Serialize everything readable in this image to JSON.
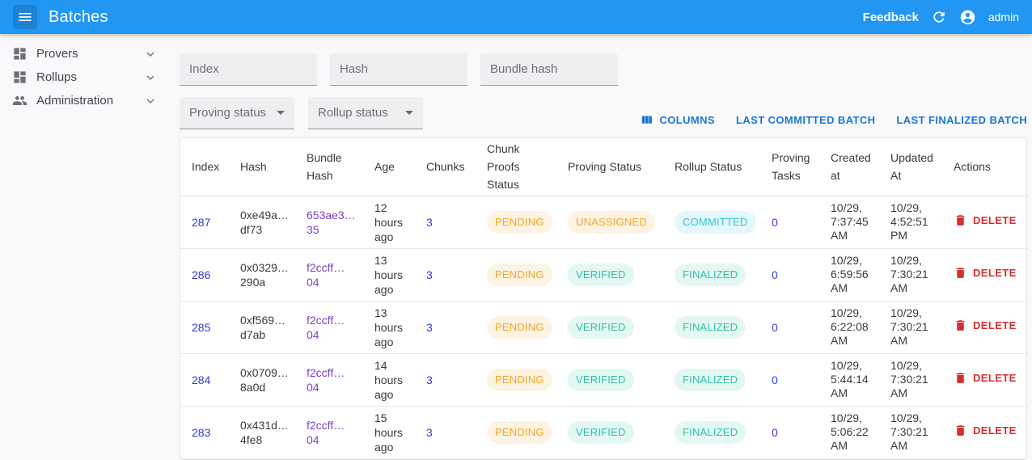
{
  "appbar": {
    "title": "Batches",
    "feedback_label": "Feedback",
    "username": "admin"
  },
  "sidebar": {
    "items": [
      {
        "label": "Provers"
      },
      {
        "label": "Rollups"
      },
      {
        "label": "Administration"
      }
    ]
  },
  "filters": {
    "index_placeholder": "Index",
    "hash_placeholder": "Hash",
    "bundle_hash_placeholder": "Bundle hash",
    "proving_status_label": "Proving status",
    "rollup_status_label": "Rollup status"
  },
  "toolbar": {
    "columns_label": "COLUMNS",
    "last_committed_label": "LAST COMMITTED BATCH",
    "last_finalized_label": "LAST FINALIZED BATCH"
  },
  "table": {
    "columns": [
      "Index",
      "Hash",
      "Bundle Hash",
      "Age",
      "Chunks",
      "Chunk Proofs Status",
      "Proving Status",
      "Rollup Status",
      "Proving Tasks",
      "Created at",
      "Updated At",
      "Actions"
    ],
    "delete_label": "DELETE",
    "rows": [
      {
        "index": "287",
        "hash": "0xe49a… df73",
        "bundle_hash": "653ae3… 35",
        "age": "12 hours ago",
        "chunks": "3",
        "chunk_proofs_status": "PENDING",
        "proving_status": "UNASSIGNED",
        "rollup_status": "COMMITTED",
        "proving_tasks": "0",
        "created_at": "10/29, 7:37:45 AM",
        "updated_at": "10/29, 4:52:51 PM"
      },
      {
        "index": "286",
        "hash": "0x0329… 290a",
        "bundle_hash": "f2ccff… 04",
        "age": "13 hours ago",
        "chunks": "3",
        "chunk_proofs_status": "PENDING",
        "proving_status": "VERIFIED",
        "rollup_status": "FINALIZED",
        "proving_tasks": "0",
        "created_at": "10/29, 6:59:56 AM",
        "updated_at": "10/29, 7:30:21 AM"
      },
      {
        "index": "285",
        "hash": "0xf569… d7ab",
        "bundle_hash": "f2ccff… 04",
        "age": "13 hours ago",
        "chunks": "3",
        "chunk_proofs_status": "PENDING",
        "proving_status": "VERIFIED",
        "rollup_status": "FINALIZED",
        "proving_tasks": "0",
        "created_at": "10/29, 6:22:08 AM",
        "updated_at": "10/29, 7:30:21 AM"
      },
      {
        "index": "284",
        "hash": "0x0709… 8a0d",
        "bundle_hash": "f2ccff… 04",
        "age": "14 hours ago",
        "chunks": "3",
        "chunk_proofs_status": "PENDING",
        "proving_status": "VERIFIED",
        "rollup_status": "FINALIZED",
        "proving_tasks": "0",
        "created_at": "10/29, 5:44:14 AM",
        "updated_at": "10/29, 7:30:21 AM"
      },
      {
        "index": "283",
        "hash": "0x431d… 4fe8",
        "bundle_hash": "f2ccff… 04",
        "age": "15 hours ago",
        "chunks": "3",
        "chunk_proofs_status": "PENDING",
        "proving_status": "VERIFIED",
        "rollup_status": "FINALIZED",
        "proving_tasks": "0",
        "created_at": "10/29, 5:06:22 AM",
        "updated_at": "10/29, 7:30:21 AM"
      }
    ]
  },
  "colors": {
    "appbar_bg": "#2196f3",
    "toolbar_button": "#1976d2",
    "link_blue": "#3239cf",
    "visited_link_purple": "#7b40c8",
    "chip_orange_text": "#f5a623",
    "chip_orange_bg": "#fdf3e3",
    "chip_cyan_text": "#33c4d6",
    "chip_cyan_bg": "#e4f7fa",
    "chip_teal_text": "#2fbfa5",
    "chip_teal_bg": "#e4f8f3",
    "delete_red": "#d32f2f"
  }
}
